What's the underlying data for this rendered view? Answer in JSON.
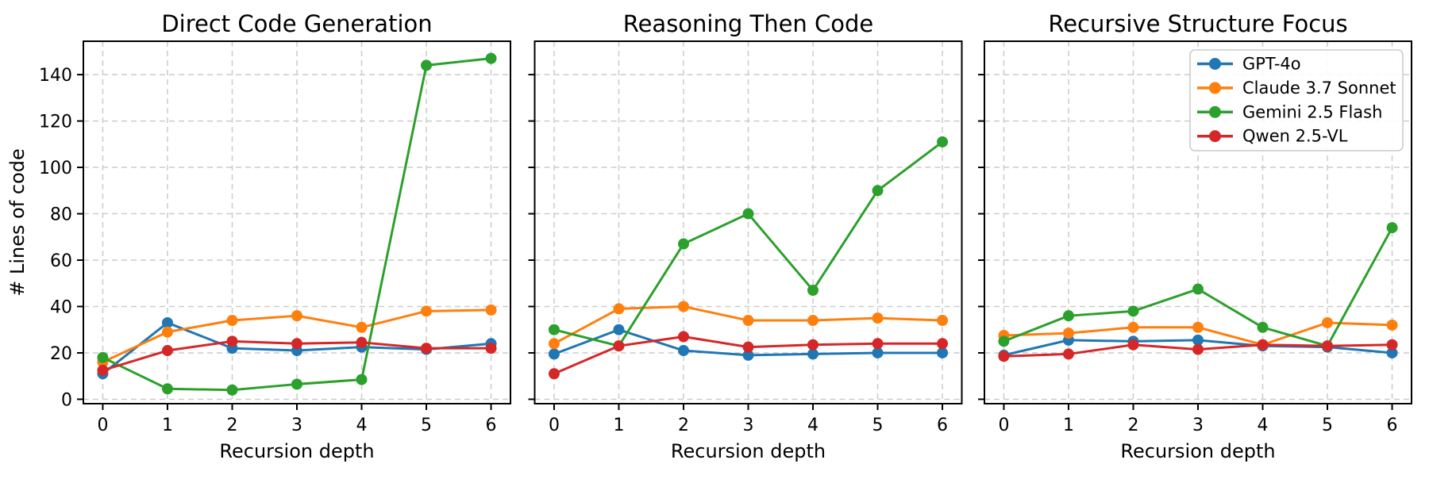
{
  "figure": {
    "background": "#ffffff",
    "shared_xlabel": "Recursion depth",
    "shared_ylabel": "# Lines of code"
  },
  "legend": {
    "location": "upper-right-of-third-panel",
    "entries": [
      {
        "label": "GPT-4o",
        "color": "#1f77b4"
      },
      {
        "label": "Claude 3.7 Sonnet",
        "color": "#ff7f0e"
      },
      {
        "label": "Gemini 2.5 Flash",
        "color": "#2ca02c"
      },
      {
        "label": "Qwen 2.5-VL",
        "color": "#d62728"
      }
    ]
  },
  "chart_data": [
    {
      "type": "line",
      "title": "Direct Code Generation",
      "xlabel": "Recursion depth",
      "ylabel": "# Lines of code",
      "x": [
        0,
        1,
        2,
        3,
        4,
        5,
        6
      ],
      "xticks": [
        0,
        1,
        2,
        3,
        4,
        5,
        6
      ],
      "yticks": [
        0,
        20,
        40,
        60,
        80,
        100,
        120,
        140
      ],
      "xlim": [
        -0.3,
        6.3
      ],
      "ylim": [
        -1.9,
        154.4
      ],
      "grid": true,
      "show_ytick_labels": true,
      "show_legend": false,
      "series": [
        {
          "name": "GPT-4o",
          "color": "#1f77b4",
          "values": [
            11,
            33,
            22,
            21,
            22.5,
            21.5,
            24
          ]
        },
        {
          "name": "Claude 3.7 Sonnet",
          "color": "#ff7f0e",
          "values": [
            16,
            29,
            34,
            36,
            31,
            38,
            38.5
          ]
        },
        {
          "name": "Gemini 2.5 Flash",
          "color": "#2ca02c",
          "values": [
            18,
            4.5,
            4,
            6.5,
            8.5,
            144,
            147
          ]
        },
        {
          "name": "Qwen 2.5-VL",
          "color": "#d62728",
          "values": [
            12.5,
            21,
            25,
            24,
            24.5,
            22,
            22
          ]
        }
      ]
    },
    {
      "type": "line",
      "title": "Reasoning Then Code",
      "xlabel": "Recursion depth",
      "ylabel": "",
      "x": [
        0,
        1,
        2,
        3,
        4,
        5,
        6
      ],
      "xticks": [
        0,
        1,
        2,
        3,
        4,
        5,
        6
      ],
      "yticks": [
        0,
        20,
        40,
        60,
        80,
        100,
        120,
        140
      ],
      "xlim": [
        -0.3,
        6.3
      ],
      "ylim": [
        -1.9,
        154.4
      ],
      "grid": true,
      "show_ytick_labels": false,
      "show_legend": false,
      "series": [
        {
          "name": "GPT-4o",
          "color": "#1f77b4",
          "values": [
            19.5,
            30,
            21,
            19,
            19.5,
            20,
            20
          ]
        },
        {
          "name": "Claude 3.7 Sonnet",
          "color": "#ff7f0e",
          "values": [
            24,
            39,
            40,
            34,
            34,
            35,
            34
          ]
        },
        {
          "name": "Gemini 2.5 Flash",
          "color": "#2ca02c",
          "values": [
            30,
            23,
            67,
            80,
            47,
            90,
            111
          ]
        },
        {
          "name": "Qwen 2.5-VL",
          "color": "#d62728",
          "values": [
            11,
            23,
            27,
            22.5,
            23.5,
            24,
            24
          ]
        }
      ]
    },
    {
      "type": "line",
      "title": "Recursive Structure Focus",
      "xlabel": "Recursion depth",
      "ylabel": "",
      "x": [
        0,
        1,
        2,
        3,
        4,
        5,
        6
      ],
      "xticks": [
        0,
        1,
        2,
        3,
        4,
        5,
        6
      ],
      "yticks": [
        0,
        20,
        40,
        60,
        80,
        100,
        120,
        140
      ],
      "xlim": [
        -0.3,
        6.3
      ],
      "ylim": [
        -1.9,
        154.4
      ],
      "grid": true,
      "show_ytick_labels": false,
      "show_legend": true,
      "series": [
        {
          "name": "GPT-4o",
          "color": "#1f77b4",
          "values": [
            19,
            25.5,
            25,
            25.5,
            23,
            22.5,
            20
          ]
        },
        {
          "name": "Claude 3.7 Sonnet",
          "color": "#ff7f0e",
          "values": [
            27.5,
            28.5,
            31,
            31,
            23.5,
            33,
            32
          ]
        },
        {
          "name": "Gemini 2.5 Flash",
          "color": "#2ca02c",
          "values": [
            25,
            36,
            38,
            47.5,
            31,
            23,
            74
          ]
        },
        {
          "name": "Qwen 2.5-VL",
          "color": "#d62728",
          "values": [
            18.5,
            19.5,
            23.5,
            21.5,
            23.5,
            23,
            23.5
          ]
        }
      ]
    }
  ],
  "style": {
    "grid_color": "#cccccc",
    "spine_color": "#000000",
    "tick_color": "#000000",
    "legend_border_color": "#cccccc",
    "legend_background": "#ffffff"
  }
}
